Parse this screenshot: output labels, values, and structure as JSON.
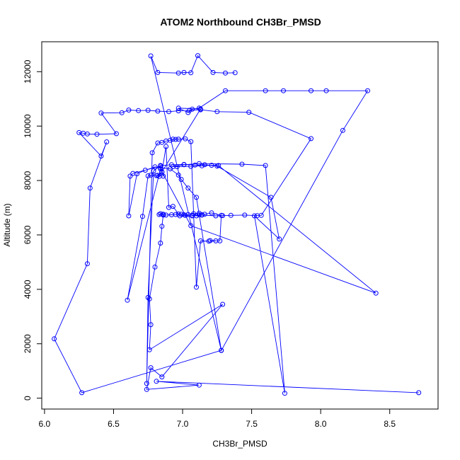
{
  "chart_data": {
    "type": "line",
    "title": "ATOM2 Northbound CH3Br_PMSD",
    "xlabel": "CH3Br_PMSD",
    "ylabel": "Altitude (m)",
    "xlim": [
      5.98,
      8.85
    ],
    "ylim": [
      -400,
      13100
    ],
    "xticks": [
      6.0,
      6.5,
      7.0,
      7.5,
      8.0,
      8.5
    ],
    "xtick_labels": [
      "6.0",
      "6.5",
      "7.0",
      "7.5",
      "8.0",
      "8.5"
    ],
    "yticks": [
      0,
      2000,
      4000,
      6000,
      8000,
      10000,
      12000
    ],
    "ytick_labels": [
      "0",
      "2000",
      "4000",
      "6000",
      "8000",
      "10000",
      "12000"
    ],
    "color": "#0000ff",
    "series": [
      {
        "name": "CH3Br_PMSD",
        "x": [
          8.71,
          6.81,
          7.12,
          6.74,
          6.77,
          6.85,
          7.29,
          6.76,
          6.77,
          6.76,
          6.8,
          6.84,
          6.85,
          6.86,
          6.83,
          6.84,
          6.86,
          6.88,
          6.92,
          6.95,
          6.97,
          6.99,
          7.01,
          7.04,
          7.08,
          7.12,
          7.16,
          7.21,
          7.28,
          7.27,
          7.2,
          7.24,
          7.19,
          7.13,
          7.1,
          7.06,
          7.02,
          6.97,
          6.95,
          6.93,
          6.91,
          6.88,
          6.85,
          6.82,
          6.78,
          6.74,
          6.75,
          6.79,
          6.84,
          6.92,
          7.01,
          7.09,
          7.16,
          7.25,
          7.64,
          7.7,
          7.52,
          7.74,
          7.6,
          7.43,
          7.12,
          7.01,
          6.93,
          6.96,
          7.06,
          7.14,
          7.21,
          7.26,
          8.4,
          7.06,
          6.84,
          6.6,
          6.71,
          6.75,
          6.77,
          6.81,
          6.86,
          6.85,
          6.84,
          6.64,
          6.62,
          6.61,
          6.67,
          6.73,
          6.8,
          6.84,
          6.91,
          6.97,
          6.99,
          7.04,
          7.1,
          7.28,
          6.27,
          6.07,
          6.31,
          6.33,
          6.45,
          6.41,
          6.25,
          6.28,
          6.31,
          6.38,
          6.52,
          6.41,
          6.56,
          6.61,
          6.68,
          6.75,
          6.82,
          6.9,
          6.97,
          7.05,
          7.13,
          7.25,
          7.48,
          7.93,
          7.57,
          7.54,
          7.45,
          7.35,
          7.29,
          7.24,
          7.14,
          7.07,
          7.1,
          7.14,
          7.12,
          7.07,
          7.02,
          6.98,
          6.93,
          6.9,
          6.88,
          6.85,
          6.82,
          6.83,
          7.13,
          6.97,
          7.04,
          7.07,
          7.12,
          7.31,
          7.6,
          7.73,
          7.93,
          8.04,
          8.34,
          8.16,
          7.28,
          6.77,
          6.82,
          6.97,
          7.01,
          7.06,
          7.11,
          7.22,
          7.31,
          7.38
        ],
        "y": [
          200,
          620,
          480,
          320,
          1120,
          780,
          3450,
          1780,
          2700,
          3650,
          4820,
          5700,
          6320,
          6730,
          6750,
          6780,
          6760,
          6730,
          6740,
          6750,
          6770,
          6760,
          6740,
          6750,
          6780,
          6800,
          6760,
          6810,
          6720,
          5780,
          5790,
          5780,
          5770,
          5780,
          4080,
          9430,
          9530,
          9520,
          9510,
          9520,
          9480,
          9450,
          9400,
          9380,
          9020,
          540,
          3700,
          8350,
          8550,
          8580,
          8590,
          8570,
          8580,
          8530,
          7380,
          5850,
          6700,
          180,
          8550,
          8600,
          8620,
          8580,
          8510,
          8510,
          8520,
          8540,
          8560,
          8550,
          3860,
          6340,
          8420,
          3600,
          6680,
          8170,
          8200,
          8180,
          8160,
          8320,
          8530,
          8260,
          8160,
          6700,
          8250,
          8380,
          8500,
          8470,
          8430,
          8200,
          8040,
          7720,
          7380,
          1760,
          200,
          2180,
          4940,
          7720,
          9420,
          8900,
          9760,
          9740,
          9710,
          9700,
          9720,
          10480,
          10490,
          10590,
          10570,
          10580,
          10550,
          10530,
          10560,
          10580,
          10600,
          10530,
          10510,
          9540,
          6720,
          6710,
          6730,
          6720,
          6710,
          6700,
          6730,
          6720,
          6700,
          6740,
          6740,
          6700,
          6720,
          6700,
          7050,
          7010,
          9250,
          8310,
          8190,
          8150,
          10630,
          10660,
          10500,
          10620,
          10660,
          11300,
          11300,
          11300,
          11300,
          11300,
          11300,
          9840,
          1750,
          12580,
          11970,
          11950,
          11970,
          11960,
          12590,
          11970,
          11950,
          11960
        ]
      }
    ]
  }
}
